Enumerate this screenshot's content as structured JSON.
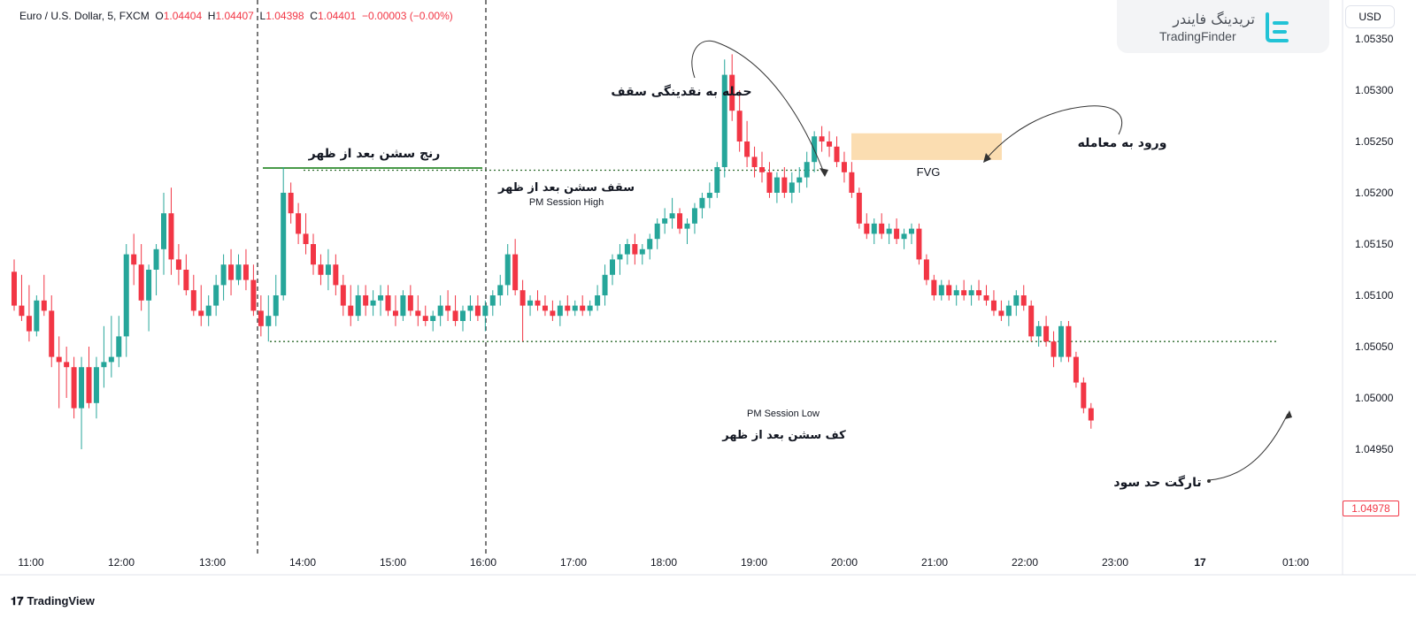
{
  "header": {
    "symbol": "Euro / U.S. Dollar, 5, FXCM",
    "o_label": "O",
    "o_value": "1.04404",
    "h_label": "H",
    "h_value": "1.04407",
    "l_label": "L",
    "l_value": "1.04398",
    "c_label": "C",
    "c_value": "1.04401",
    "change": "−0.00003 (−0.00%)"
  },
  "branding": {
    "logo_text_fa": "تریدینگ فایندر",
    "logo_text_en": "TradingFinder",
    "currency_button": "USD",
    "tradingview": "TradingView"
  },
  "last_price_label": "1.04978",
  "colors": {
    "up": "#26a69a",
    "down": "#f23645",
    "fvg": "#fbd9a9",
    "range_line": "#2e8b2e",
    "dotted": "#2e6b2e"
  },
  "chart_data": {
    "type": "candlestick",
    "title": "",
    "xlabel": "",
    "ylabel": "",
    "ylim": [
      1.0494,
      1.0537
    ],
    "y_ticks": [
      "1.05350",
      "1.05300",
      "1.05250",
      "1.05200",
      "1.05150",
      "1.05100",
      "1.05050",
      "1.05000",
      "1.04950"
    ],
    "x_ticks": [
      "11:00",
      "12:00",
      "13:00",
      "14:00",
      "15:00",
      "16:00",
      "17:00",
      "18:00",
      "19:00",
      "20:00",
      "21:00",
      "22:00",
      "23:00",
      "17",
      "01:00"
    ],
    "candles": [
      [
        1.05123,
        1.05135,
        1.05085,
        1.0509
      ],
      [
        1.0509,
        1.0512,
        1.05075,
        1.0508
      ],
      [
        1.0508,
        1.0511,
        1.05055,
        1.05065
      ],
      [
        1.05065,
        1.051,
        1.0506,
        1.05095
      ],
      [
        1.05095,
        1.0512,
        1.0508,
        1.05085
      ],
      [
        1.05085,
        1.051,
        1.0503,
        1.0504
      ],
      [
        1.0504,
        1.0506,
        1.0499,
        1.05035
      ],
      [
        1.05035,
        1.0505,
        1.05,
        1.0503
      ],
      [
        1.0503,
        1.0504,
        1.0498,
        1.0499
      ],
      [
        1.0499,
        1.0504,
        1.0495,
        1.0503
      ],
      [
        1.0503,
        1.0505,
        1.0499,
        1.04995
      ],
      [
        1.04995,
        1.0504,
        1.0498,
        1.0503
      ],
      [
        1.0503,
        1.0507,
        1.0501,
        1.05035
      ],
      [
        1.05035,
        1.0508,
        1.0502,
        1.0504
      ],
      [
        1.0504,
        1.0508,
        1.0503,
        1.0506
      ],
      [
        1.0506,
        1.0515,
        1.0504,
        1.0514
      ],
      [
        1.0514,
        1.0516,
        1.0511,
        1.0513
      ],
      [
        1.0513,
        1.0515,
        1.05085,
        1.05095
      ],
      [
        1.05095,
        1.0513,
        1.05065,
        1.05125
      ],
      [
        1.05125,
        1.0515,
        1.051,
        1.05145
      ],
      [
        1.05145,
        1.052,
        1.0512,
        1.0518
      ],
      [
        1.0518,
        1.05205,
        1.0512,
        1.05135
      ],
      [
        1.05135,
        1.0515,
        1.0511,
        1.05125
      ],
      [
        1.05125,
        1.0514,
        1.051,
        1.05105
      ],
      [
        1.05105,
        1.0512,
        1.0508,
        1.05085
      ],
      [
        1.05085,
        1.0511,
        1.0507,
        1.0508
      ],
      [
        1.0508,
        1.051,
        1.0507,
        1.0509
      ],
      [
        1.0509,
        1.0512,
        1.0508,
        1.0511
      ],
      [
        1.0511,
        1.0514,
        1.05095,
        1.0513
      ],
      [
        1.0513,
        1.05145,
        1.051,
        1.05115
      ],
      [
        1.05115,
        1.0514,
        1.0511,
        1.0513
      ],
      [
        1.0513,
        1.05145,
        1.05105,
        1.05115
      ],
      [
        1.05115,
        1.0513,
        1.0508,
        1.05085
      ],
      [
        1.05085,
        1.051,
        1.0506,
        1.0507
      ],
      [
        1.0507,
        1.051,
        1.05055,
        1.0508
      ],
      [
        1.0508,
        1.0512,
        1.0507,
        1.051
      ],
      [
        1.051,
        1.05225,
        1.05095,
        1.052
      ],
      [
        1.052,
        1.0521,
        1.0517,
        1.0518
      ],
      [
        1.0518,
        1.0519,
        1.0515,
        1.0516
      ],
      [
        1.0516,
        1.0518,
        1.0514,
        1.0515
      ],
      [
        1.0515,
        1.0516,
        1.0512,
        1.0513
      ],
      [
        1.0513,
        1.0514,
        1.0511,
        1.0512
      ],
      [
        1.0512,
        1.05145,
        1.05105,
        1.0513
      ],
      [
        1.0513,
        1.0514,
        1.051,
        1.0511
      ],
      [
        1.0511,
        1.0512,
        1.0508,
        1.0509
      ],
      [
        1.0509,
        1.0511,
        1.0507,
        1.0508
      ],
      [
        1.0508,
        1.0511,
        1.05075,
        1.051
      ],
      [
        1.051,
        1.0511,
        1.0508,
        1.0509
      ],
      [
        1.0509,
        1.05105,
        1.0508,
        1.05095
      ],
      [
        1.05095,
        1.0511,
        1.0508,
        1.051
      ],
      [
        1.051,
        1.0511,
        1.0508,
        1.05085
      ],
      [
        1.05085,
        1.051,
        1.0507,
        1.0508
      ],
      [
        1.0508,
        1.05105,
        1.05075,
        1.051
      ],
      [
        1.051,
        1.0511,
        1.0508,
        1.05085
      ],
      [
        1.05085,
        1.051,
        1.0507,
        1.0508
      ],
      [
        1.0508,
        1.0509,
        1.0507,
        1.05075
      ],
      [
        1.05075,
        1.05085,
        1.05065,
        1.0508
      ],
      [
        1.0508,
        1.051,
        1.0507,
        1.0509
      ],
      [
        1.0509,
        1.05105,
        1.05075,
        1.05085
      ],
      [
        1.05085,
        1.051,
        1.0507,
        1.05075
      ],
      [
        1.05075,
        1.0509,
        1.05065,
        1.05085
      ],
      [
        1.05085,
        1.051,
        1.05075,
        1.0509
      ],
      [
        1.0509,
        1.051,
        1.05075,
        1.0508
      ],
      [
        1.0508,
        1.05095,
        1.05065,
        1.0509
      ],
      [
        1.0509,
        1.05105,
        1.0508,
        1.051
      ],
      [
        1.051,
        1.0512,
        1.0509,
        1.0511
      ],
      [
        1.0511,
        1.0515,
        1.051,
        1.0514
      ],
      [
        1.0514,
        1.05155,
        1.051,
        1.05105
      ],
      [
        1.05105,
        1.05115,
        1.05055,
        1.0509
      ],
      [
        1.0509,
        1.051,
        1.0508,
        1.05095
      ],
      [
        1.05095,
        1.05105,
        1.05085,
        1.0509
      ],
      [
        1.0509,
        1.051,
        1.0508,
        1.05085
      ],
      [
        1.05085,
        1.05095,
        1.05075,
        1.0508
      ],
      [
        1.0508,
        1.05095,
        1.0507,
        1.0509
      ],
      [
        1.0509,
        1.051,
        1.0508,
        1.05085
      ],
      [
        1.05085,
        1.05095,
        1.0508,
        1.0509
      ],
      [
        1.0509,
        1.051,
        1.0508,
        1.05085
      ],
      [
        1.05085,
        1.05095,
        1.0508,
        1.0509
      ],
      [
        1.0509,
        1.0511,
        1.05085,
        1.051
      ],
      [
        1.051,
        1.0513,
        1.0509,
        1.0512
      ],
      [
        1.0512,
        1.0514,
        1.0511,
        1.05135
      ],
      [
        1.05135,
        1.0515,
        1.0512,
        1.0514
      ],
      [
        1.0514,
        1.05155,
        1.0513,
        1.0515
      ],
      [
        1.0515,
        1.0516,
        1.0513,
        1.0514
      ],
      [
        1.0514,
        1.0515,
        1.0513,
        1.05145
      ],
      [
        1.05145,
        1.0516,
        1.05135,
        1.05155
      ],
      [
        1.05155,
        1.05175,
        1.05145,
        1.0517
      ],
      [
        1.0517,
        1.05185,
        1.0516,
        1.05175
      ],
      [
        1.05175,
        1.05195,
        1.05165,
        1.0518
      ],
      [
        1.0518,
        1.05185,
        1.0516,
        1.05165
      ],
      [
        1.05165,
        1.05175,
        1.0515,
        1.0517
      ],
      [
        1.0517,
        1.0519,
        1.0516,
        1.05185
      ],
      [
        1.05185,
        1.052,
        1.05175,
        1.05195
      ],
      [
        1.05195,
        1.0521,
        1.05185,
        1.052
      ],
      [
        1.052,
        1.0523,
        1.05195,
        1.05225
      ],
      [
        1.05225,
        1.0533,
        1.05215,
        1.05315
      ],
      [
        1.05315,
        1.05335,
        1.0527,
        1.0528
      ],
      [
        1.0528,
        1.053,
        1.0524,
        1.0525
      ],
      [
        1.0525,
        1.0527,
        1.05225,
        1.05235
      ],
      [
        1.05235,
        1.05245,
        1.05215,
        1.05225
      ],
      [
        1.05225,
        1.0524,
        1.0521,
        1.0522
      ],
      [
        1.0522,
        1.0523,
        1.05195,
        1.052
      ],
      [
        1.052,
        1.0522,
        1.0519,
        1.05215
      ],
      [
        1.05215,
        1.05225,
        1.05195,
        1.052
      ],
      [
        1.052,
        1.0522,
        1.0519,
        1.0521
      ],
      [
        1.0521,
        1.05225,
        1.052,
        1.05215
      ],
      [
        1.05215,
        1.0524,
        1.05205,
        1.0523
      ],
      [
        1.0523,
        1.0526,
        1.0522,
        1.05255
      ],
      [
        1.05255,
        1.05265,
        1.0524,
        1.0525
      ],
      [
        1.0525,
        1.0526,
        1.05235,
        1.05245
      ],
      [
        1.05245,
        1.05255,
        1.05225,
        1.0523
      ],
      [
        1.0523,
        1.0524,
        1.0521,
        1.0522
      ],
      [
        1.0522,
        1.0523,
        1.05195,
        1.052
      ],
      [
        1.052,
        1.05205,
        1.05165,
        1.0517
      ],
      [
        1.0517,
        1.0518,
        1.05155,
        1.0516
      ],
      [
        1.0516,
        1.05175,
        1.0515,
        1.0517
      ],
      [
        1.0517,
        1.0518,
        1.05155,
        1.0516
      ],
      [
        1.0516,
        1.0517,
        1.0515,
        1.05165
      ],
      [
        1.05165,
        1.05175,
        1.0515,
        1.05155
      ],
      [
        1.05155,
        1.05165,
        1.05145,
        1.0516
      ],
      [
        1.0516,
        1.0517,
        1.0515,
        1.05165
      ],
      [
        1.05165,
        1.0517,
        1.0513,
        1.05135
      ],
      [
        1.05135,
        1.0514,
        1.0511,
        1.05115
      ],
      [
        1.05115,
        1.0512,
        1.05095,
        1.051
      ],
      [
        1.051,
        1.05115,
        1.05095,
        1.0511
      ],
      [
        1.0511,
        1.05115,
        1.05095,
        1.051
      ],
      [
        1.051,
        1.0511,
        1.0509,
        1.05105
      ],
      [
        1.05105,
        1.05115,
        1.05095,
        1.051
      ],
      [
        1.051,
        1.0511,
        1.0509,
        1.05105
      ],
      [
        1.05105,
        1.05115,
        1.05095,
        1.051
      ],
      [
        1.051,
        1.0511,
        1.0509,
        1.05095
      ],
      [
        1.05095,
        1.05105,
        1.0508,
        1.05085
      ],
      [
        1.05085,
        1.05095,
        1.05075,
        1.0508
      ],
      [
        1.0508,
        1.05095,
        1.0507,
        1.0509
      ],
      [
        1.0509,
        1.05105,
        1.0508,
        1.051
      ],
      [
        1.051,
        1.0511,
        1.05085,
        1.0509
      ],
      [
        1.0509,
        1.05095,
        1.05055,
        1.0506
      ],
      [
        1.0506,
        1.05075,
        1.0505,
        1.0507
      ],
      [
        1.0507,
        1.0508,
        1.0505,
        1.05055
      ],
      [
        1.05055,
        1.05065,
        1.0503,
        1.0504
      ],
      [
        1.0504,
        1.05075,
        1.05035,
        1.0507
      ],
      [
        1.0507,
        1.05075,
        1.05035,
        1.0504
      ],
      [
        1.0504,
        1.05045,
        1.0501,
        1.05015
      ],
      [
        1.05015,
        1.0502,
        1.04985,
        1.0499
      ],
      [
        1.0499,
        1.04995,
        1.0497,
        1.04978
      ]
    ],
    "levels": {
      "pm_session_high": 1.05222,
      "pm_session_low": 1.05055,
      "fvg_top": 1.05258,
      "fvg_bottom": 1.05232
    },
    "annotations": {
      "range_label": "رنج سشن بعد از ظهر",
      "high_label_fa": "سقف سشن بعد از ظهر",
      "high_label_en": "PM Session High",
      "low_label_en": "PM Session Low",
      "low_label_fa": "کف سشن بعد از ظهر",
      "liquidity_label": "حمله به نقدینگی سقف",
      "entry_label": "ورود به معامله",
      "target_label": "تارگت حد سود",
      "fvg_label": "FVG"
    }
  }
}
